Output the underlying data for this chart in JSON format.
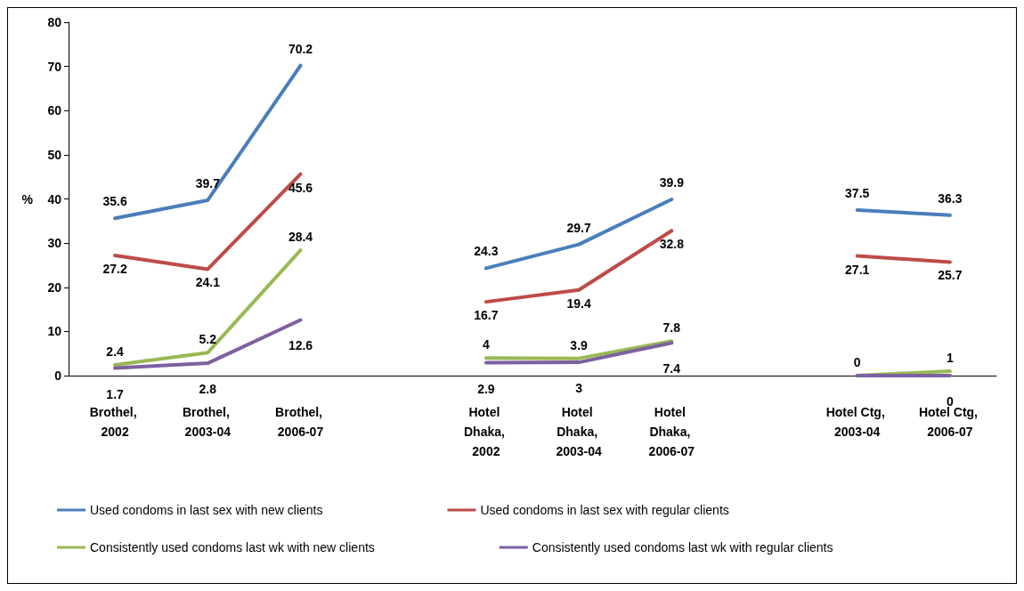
{
  "chart_data": {
    "type": "line",
    "ylabel": "%",
    "categories": [
      "Brothel, 2002",
      "Brothel, 2003-04",
      "Brothel, 2006-07",
      null,
      "Hotel Dhaka, 2002",
      "Hotel Dhaka, 2003-04",
      "Hotel Dhaka, 2006-07",
      null,
      "Hotel Ctg, 2003-04",
      "Hotel Ctg, 2006-07"
    ],
    "series": [
      {
        "name": "Used condoms in last sex with new clients",
        "color": "#4a7ebb",
        "values": [
          35.6,
          39.7,
          70.2,
          null,
          24.3,
          29.7,
          39.9,
          null,
          37.5,
          36.3
        ]
      },
      {
        "name": "Used condoms in last sex with regular clients",
        "color": "#be4b48",
        "values": [
          27.2,
          24.1,
          45.6,
          null,
          16.7,
          19.4,
          32.8,
          null,
          27.1,
          25.7
        ]
      },
      {
        "name": "Consistently used condoms last wk with new clients",
        "color": "#98b954",
        "values": [
          2.4,
          5.2,
          28.4,
          null,
          4,
          3.9,
          7.8,
          null,
          0,
          1
        ]
      },
      {
        "name": "Consistently used condoms last wk with regular clients",
        "color": "#7d60a0",
        "values": [
          1.7,
          2.8,
          12.6,
          null,
          2.9,
          3,
          7.4,
          null,
          0,
          0
        ],
        "value_labels": [
          "1.7",
          "2.8",
          "12.6",
          null,
          "2.9",
          "3",
          "7.4",
          null,
          null,
          "0"
        ]
      }
    ],
    "ylim": [
      0,
      80
    ],
    "yticks": [
      0,
      10,
      20,
      30,
      40,
      50,
      60,
      70,
      80
    ],
    "grid": false,
    "legend": "bottom",
    "marker": "none",
    "line_style": "solid",
    "data_labels": true
  }
}
